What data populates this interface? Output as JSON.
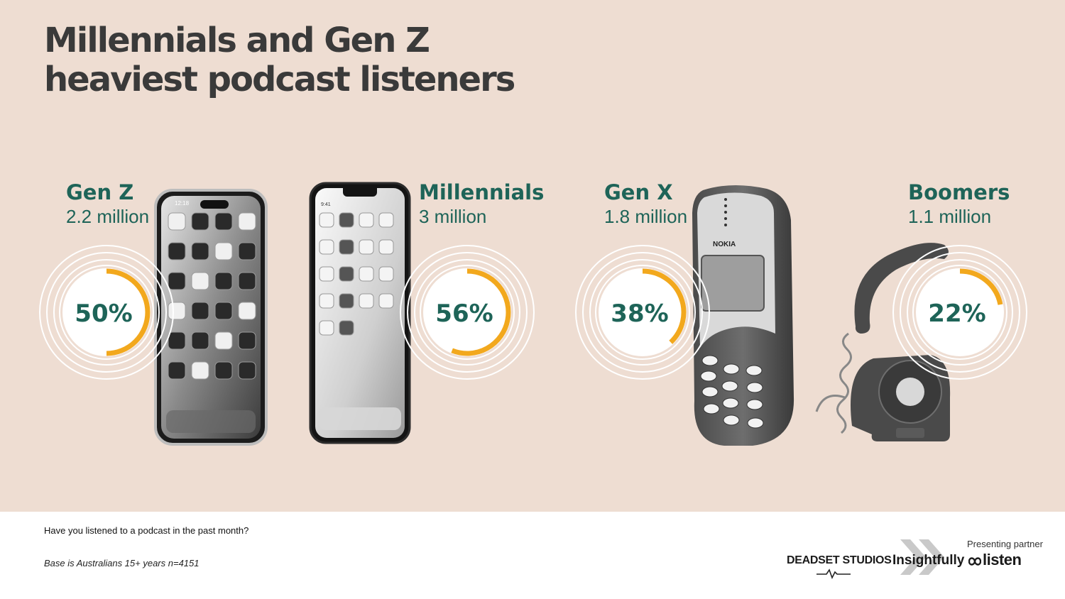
{
  "title": {
    "line1": "Millennials and Gen Z",
    "line2": "heaviest podcast listeners"
  },
  "chart_data": {
    "type": "donut",
    "categories": [
      "Gen Z",
      "Millennials",
      "Gen X",
      "Boomers"
    ],
    "populations": [
      "2.2 million",
      "3 million",
      "1.8 million",
      "1.1 million"
    ],
    "values": [
      50,
      56,
      38,
      22
    ],
    "value_labels": [
      "50%",
      "56%",
      "38%",
      "22%"
    ],
    "unit": "%",
    "max": 100
  },
  "colors": {
    "background": "#eeddd2",
    "accent": "#f2a81d",
    "label": "#1e6458",
    "title": "#3a3a3a"
  },
  "footer": {
    "question": "Have you listened to a podcast in the past month?",
    "base": "Base is Australians 15+ years n=4151",
    "partner_label": "Presenting partner",
    "logos": {
      "deadset": "DEADSET STUDIOS",
      "insightfully": "Insightfully",
      "listen": "listen"
    }
  },
  "devices": {
    "phone_screen_text": {
      "time1": "12:18",
      "time2": "9:41",
      "brand": "NOKIA"
    }
  }
}
